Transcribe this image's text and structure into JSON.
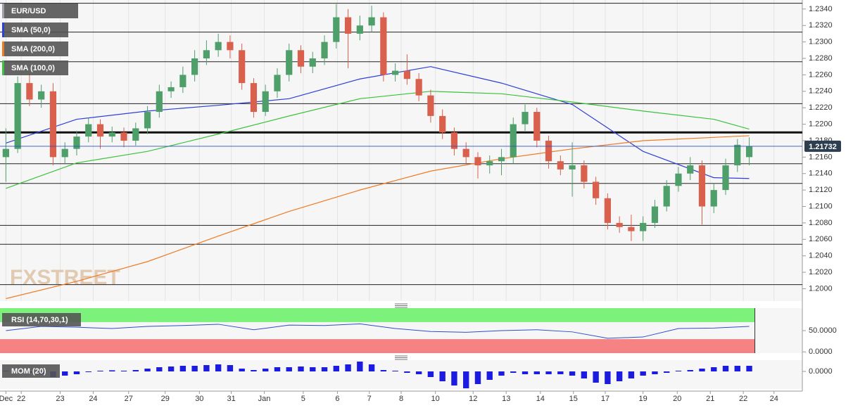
{
  "chart_data": [
    {
      "type": "candlestick",
      "title": "EUR/USD",
      "color": "#9aa0a6",
      "up_color": "#4e9f6a",
      "down_color": "#d9604c",
      "ohlc": [
        [
          1.216,
          1.2195,
          1.213,
          1.217
        ],
        [
          1.217,
          1.2258,
          1.2165,
          1.225
        ],
        [
          1.225,
          1.2262,
          1.2222,
          1.223
        ],
        [
          1.223,
          1.2248,
          1.222,
          1.224
        ],
        [
          1.224,
          1.225,
          1.215,
          1.216
        ],
        [
          1.216,
          1.2178,
          1.2152,
          1.217
        ],
        [
          1.217,
          1.2192,
          1.2162,
          1.2185
        ],
        [
          1.2185,
          1.2208,
          1.2178,
          1.22
        ],
        [
          1.22,
          1.2206,
          1.217,
          1.2185
        ],
        [
          1.2185,
          1.2197,
          1.2178,
          1.219
        ],
        [
          1.219,
          1.2196,
          1.2172,
          1.218
        ],
        [
          1.218,
          1.2202,
          1.2174,
          1.2195
        ],
        [
          1.2195,
          1.2222,
          1.2188,
          1.2215
        ],
        [
          1.2215,
          1.2248,
          1.2208,
          1.224
        ],
        [
          1.224,
          1.2252,
          1.2232,
          1.2245
        ],
        [
          1.2245,
          1.227,
          1.2238,
          1.226
        ],
        [
          1.226,
          1.229,
          1.2252,
          1.228
        ],
        [
          1.228,
          1.2302,
          1.2272,
          1.229
        ],
        [
          1.229,
          1.231,
          1.2282,
          1.23
        ],
        [
          1.23,
          1.2308,
          1.228,
          1.229
        ],
        [
          1.229,
          1.2298,
          1.2242,
          1.225
        ],
        [
          1.225,
          1.2256,
          1.2208,
          1.2215
        ],
        [
          1.2215,
          1.2248,
          1.221,
          1.224
        ],
        [
          1.224,
          1.2268,
          1.2232,
          1.226
        ],
        [
          1.226,
          1.2298,
          1.2252,
          1.229
        ],
        [
          1.229,
          1.2296,
          1.2262,
          1.227
        ],
        [
          1.227,
          1.2288,
          1.2262,
          1.228
        ],
        [
          1.228,
          1.2308,
          1.2272,
          1.23
        ],
        [
          1.23,
          1.2346,
          1.2292,
          1.233
        ],
        [
          1.233,
          1.234,
          1.2268,
          1.231
        ],
        [
          1.231,
          1.2332,
          1.2302,
          1.232
        ],
        [
          1.232,
          1.2344,
          1.2312,
          1.233
        ],
        [
          1.233,
          1.2336,
          1.2252,
          1.226
        ],
        [
          1.226,
          1.2274,
          1.2252,
          1.2265
        ],
        [
          1.2265,
          1.2285,
          1.2248,
          1.2255
        ],
        [
          1.2255,
          1.2262,
          1.2228,
          1.2235
        ],
        [
          1.2235,
          1.2242,
          1.2202,
          1.221
        ],
        [
          1.221,
          1.2218,
          1.2182,
          1.219
        ],
        [
          1.219,
          1.2196,
          1.2162,
          1.217
        ],
        [
          1.217,
          1.2178,
          1.2152,
          1.216
        ],
        [
          1.216,
          1.2166,
          1.2134,
          1.215
        ],
        [
          1.215,
          1.2162,
          1.214,
          1.2155
        ],
        [
          1.2155,
          1.217,
          1.2138,
          1.216
        ],
        [
          1.216,
          1.2208,
          1.2152,
          1.22
        ],
        [
          1.22,
          1.2224,
          1.2192,
          1.2215
        ],
        [
          1.2215,
          1.222,
          1.2172,
          1.218
        ],
        [
          1.218,
          1.2186,
          1.2146,
          1.2155
        ],
        [
          1.2155,
          1.2162,
          1.2138,
          1.2145
        ],
        [
          1.2145,
          1.2178,
          1.2112,
          1.215
        ],
        [
          1.215,
          1.2156,
          1.2122,
          1.213
        ],
        [
          1.213,
          1.2136,
          1.2102,
          1.211
        ],
        [
          1.211,
          1.2116,
          1.2072,
          1.208
        ],
        [
          1.208,
          1.2088,
          1.2068,
          1.2075
        ],
        [
          1.2075,
          1.209,
          1.2058,
          1.207
        ],
        [
          1.207,
          1.2088,
          1.2058,
          1.208
        ],
        [
          1.208,
          1.2108,
          1.2074,
          1.21
        ],
        [
          1.21,
          1.2132,
          1.2094,
          1.2125
        ],
        [
          1.2125,
          1.2148,
          1.2118,
          1.214
        ],
        [
          1.214,
          1.216,
          1.2132,
          1.215
        ],
        [
          1.215,
          1.2156,
          1.2078,
          1.21
        ],
        [
          1.21,
          1.2128,
          1.2092,
          1.212
        ],
        [
          1.212,
          1.2158,
          1.2114,
          1.215
        ],
        [
          1.215,
          1.2182,
          1.2142,
          1.2175
        ],
        [
          1.216,
          1.2184,
          1.215,
          1.21732
        ]
      ],
      "overlays": [
        {
          "name": "SMA (50,0)",
          "color": "#2f3fd8",
          "x": [
            0,
            6,
            12,
            18,
            24,
            30,
            36,
            42,
            48,
            54,
            60,
            63
          ],
          "values": [
            1.2177,
            1.2206,
            1.2216,
            1.2223,
            1.2231,
            1.2255,
            1.227,
            1.225,
            1.2224,
            1.2167,
            1.2135,
            1.2134
          ]
        },
        {
          "name": "SMA (200,0)",
          "color": "#f07a22",
          "x": [
            0,
            6,
            12,
            18,
            24,
            30,
            36,
            42,
            48,
            54,
            60,
            63
          ],
          "values": [
            1.1988,
            1.2009,
            1.2033,
            1.2064,
            1.2094,
            1.212,
            1.2143,
            1.2158,
            1.217,
            1.218,
            1.2184,
            1.2186
          ]
        },
        {
          "name": "SMA (100,0)",
          "color": "#3cc23c",
          "x": [
            0,
            6,
            12,
            18,
            24,
            30,
            36,
            42,
            48,
            54,
            60,
            63
          ],
          "values": [
            1.2122,
            1.2153,
            1.2167,
            1.2188,
            1.221,
            1.2231,
            1.224,
            1.2237,
            1.2227,
            1.2216,
            1.2206,
            1.2194
          ]
        }
      ],
      "levels": [
        1.2347,
        1.2312,
        1.2276,
        1.2225,
        1.2152,
        1.2128,
        1.2077,
        1.2054,
        1.2005
      ],
      "key_level": 1.219,
      "last_price": 1.21732,
      "last_price_color": "#2c3e50",
      "watermark": "FXSTREET",
      "ylim": [
        1.1985,
        1.2351
      ],
      "yticks": [
        {
          "value": 1.2,
          "label": "1.2000"
        },
        {
          "value": 1.202,
          "label": "1.2020"
        },
        {
          "value": 1.204,
          "label": "1.2040"
        },
        {
          "value": 1.206,
          "label": "1.2060"
        },
        {
          "value": 1.208,
          "label": "1.2080"
        },
        {
          "value": 1.21,
          "label": "1.2100"
        },
        {
          "value": 1.212,
          "label": "1.2120"
        },
        {
          "value": 1.214,
          "label": "1.2140"
        },
        {
          "value": 1.216,
          "label": "1.2160"
        },
        {
          "value": 1.218,
          "label": "1.2180"
        },
        {
          "value": 1.22,
          "label": "1.2200"
        },
        {
          "value": 1.222,
          "label": "1.2220"
        },
        {
          "value": 1.224,
          "label": "1.2240"
        },
        {
          "value": 1.226,
          "label": "1.2260"
        },
        {
          "value": 1.228,
          "label": "1.2280"
        },
        {
          "value": 1.23,
          "label": "1.2300"
        },
        {
          "value": 1.232,
          "label": "1.2320"
        },
        {
          "value": 1.234,
          "label": "1.2340"
        }
      ],
      "xlim": [
        -0.5,
        67.5
      ],
      "xticks": [
        {
          "value": 0,
          "label": "Dec"
        },
        {
          "value": 1.3,
          "label": "22"
        },
        {
          "value": 4.6,
          "label": "23"
        },
        {
          "value": 7.4,
          "label": "24"
        },
        {
          "value": 10.4,
          "label": "27"
        },
        {
          "value": 13.5,
          "label": "29"
        },
        {
          "value": 16.4,
          "label": "30"
        },
        {
          "value": 19.1,
          "label": "31"
        },
        {
          "value": 21.9,
          "label": "Jan"
        },
        {
          "value": 25.2,
          "label": "5"
        },
        {
          "value": 28.1,
          "label": "6"
        },
        {
          "value": 30.8,
          "label": "7"
        },
        {
          "value": 33.5,
          "label": "8"
        },
        {
          "value": 36.4,
          "label": "10"
        },
        {
          "value": 39.6,
          "label": "12"
        },
        {
          "value": 42.4,
          "label": "13"
        },
        {
          "value": 45.3,
          "label": "14"
        },
        {
          "value": 48.1,
          "label": "15"
        },
        {
          "value": 50.8,
          "label": "17"
        },
        {
          "value": 54.0,
          "label": "19"
        },
        {
          "value": 56.9,
          "label": "20"
        },
        {
          "value": 59.7,
          "label": "21"
        },
        {
          "value": 62.5,
          "label": "22"
        },
        {
          "value": 65.1,
          "label": "24"
        }
      ],
      "grid": true
    },
    {
      "type": "line",
      "title": "RSI (14,70,30,1)",
      "color": "#2a4fc8",
      "x": [
        0,
        3,
        6,
        9,
        12,
        15,
        18,
        21,
        24,
        27,
        30,
        33,
        36,
        39,
        42,
        45,
        48,
        51,
        54,
        57,
        60,
        63
      ],
      "values": [
        50,
        60,
        58,
        55,
        60,
        62,
        65,
        52,
        63,
        62,
        66,
        55,
        48,
        46,
        50,
        52,
        47,
        32,
        35,
        55,
        56,
        60
      ],
      "overbought": 70,
      "oversold": 30,
      "overbought_color": "#7cf27c",
      "oversold_color": "#f58383",
      "ylim": [
        -3,
        103
      ],
      "yticks": [
        {
          "value": 50,
          "label": "50.0000"
        },
        {
          "value": 0,
          "label": "0.0000"
        }
      ]
    },
    {
      "type": "bar",
      "title": "MOM (20)",
      "color": "#1c1ce0",
      "values": [
        0.0005,
        0.001,
        -0.001,
        -0.002,
        -0.004,
        -0.003,
        -0.002,
        -0.0005,
        0.0005,
        0.0008,
        0.0005,
        0.001,
        0.002,
        0.003,
        0.0035,
        0.004,
        0.004,
        0.0045,
        0.005,
        0.0045,
        0.002,
        0.001,
        0.002,
        0.003,
        0.003,
        0.0035,
        0.003,
        0.003,
        0.004,
        0.005,
        0.007,
        0.005,
        0.001,
        0.0005,
        -0.001,
        -0.002,
        -0.004,
        -0.007,
        -0.01,
        -0.012,
        -0.009,
        -0.006,
        -0.003,
        -0.001,
        -0.002,
        -0.002,
        -0.002,
        -0.002,
        -0.003,
        -0.005,
        -0.008,
        -0.009,
        -0.007,
        -0.005,
        -0.003,
        -0.002,
        -0.001,
        0.0005,
        0.001,
        0.002,
        0.003,
        0.004,
        0.004,
        0.004
      ],
      "ylim": [
        -0.0125,
        0.008
      ],
      "yticks": [
        {
          "value": 0,
          "label": "0.0000"
        }
      ]
    }
  ]
}
